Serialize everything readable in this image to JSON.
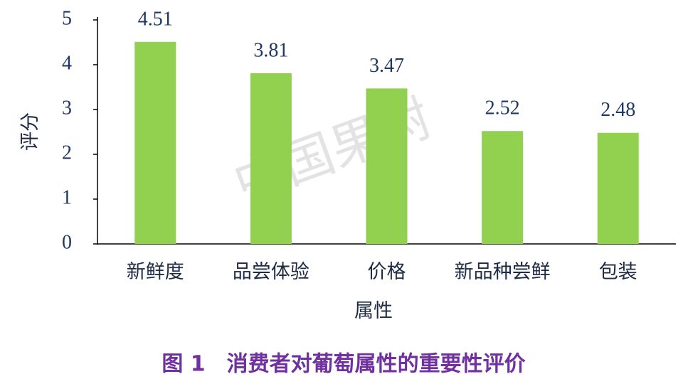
{
  "chart_data": {
    "type": "bar",
    "title": "图 1　消费者对葡萄属性的重要性评价",
    "x_label": "属性",
    "y_label": "评分",
    "watermark": "中国果树",
    "categories": [
      "新鲜度",
      "品尝体验",
      "价格",
      "新品种尝鲜",
      "包装"
    ],
    "values": [
      4.51,
      3.81,
      3.47,
      2.52,
      2.48
    ],
    "color": "#92d050",
    "ylim": [
      0,
      5
    ],
    "yticks": [
      0,
      1,
      2,
      3,
      4,
      5
    ],
    "grid": false
  }
}
